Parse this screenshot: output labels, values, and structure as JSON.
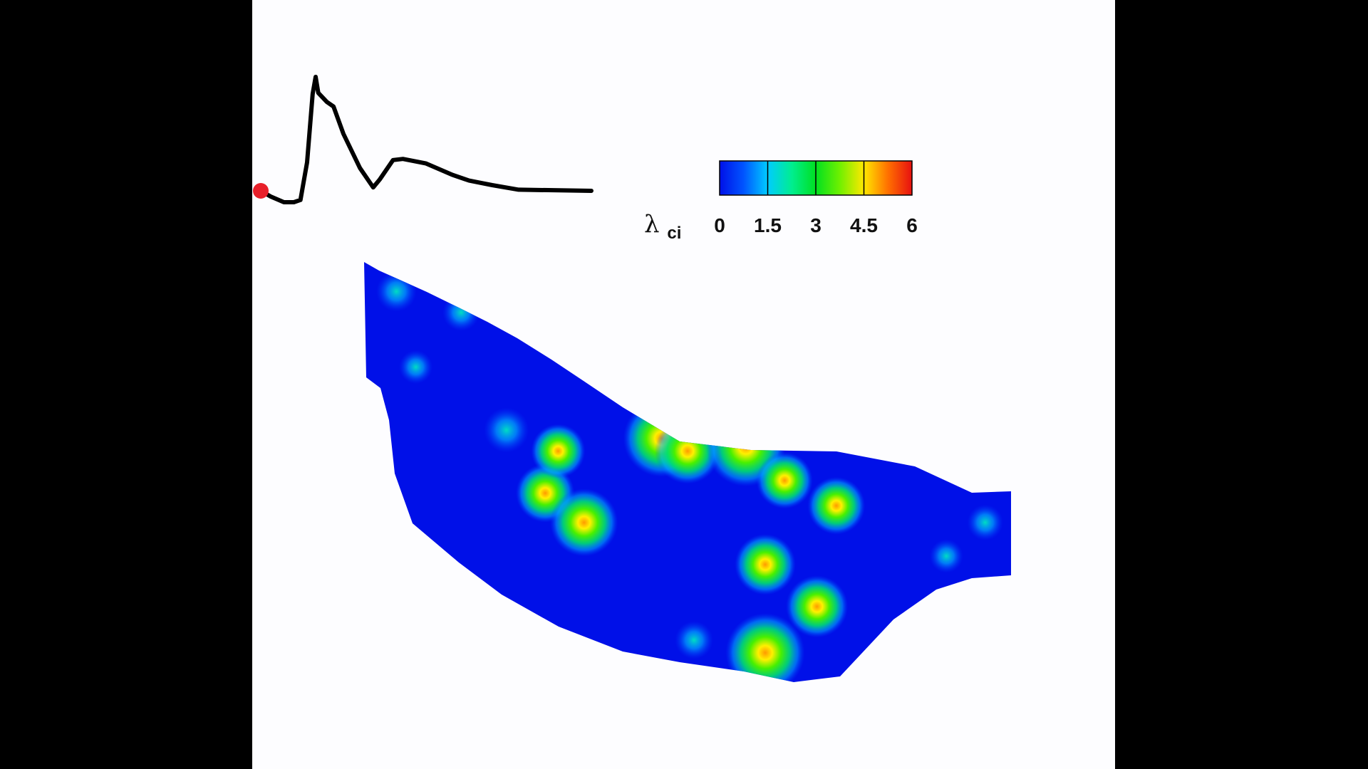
{
  "colors": {
    "background": "#000000",
    "panel": "#fdfdff",
    "waveform": "#000000",
    "marker": "#e8202a",
    "field_low": "#0010e8"
  },
  "chart_data": [
    {
      "type": "line",
      "title": "",
      "xlabel": "",
      "ylabel": "",
      "axes_visible": false,
      "series": [
        {
          "x": [
            0,
            0.03,
            0.07,
            0.1,
            0.12,
            0.14,
            0.157,
            0.166,
            0.174,
            0.2,
            0.22,
            0.25,
            0.3,
            0.34,
            0.36,
            0.4,
            0.43,
            0.5,
            0.58,
            0.63,
            0.7,
            0.78,
            1.0
          ],
          "y": [
            0.0,
            -0.05,
            -0.1,
            -0.1,
            -0.08,
            0.25,
            0.85,
            1.0,
            0.86,
            0.78,
            0.74,
            0.5,
            0.2,
            0.03,
            0.1,
            0.27,
            0.28,
            0.24,
            0.14,
            0.09,
            0.05,
            0.01,
            0.0
          ]
        }
      ],
      "current_point": {
        "x": 0,
        "y": 0
      }
    },
    {
      "type": "heatmap",
      "title": "",
      "xlabel": "",
      "ylabel": "",
      "axes_visible": false,
      "colorbar": {
        "label": "λ",
        "label_subscript": "ci",
        "ticks": [
          "0",
          "1.5",
          "3",
          "4.5",
          "6"
        ],
        "range": [
          0,
          6
        ],
        "colormap": "jet"
      },
      "field_hotspots": [
        {
          "x": 0.28,
          "y": 0.55,
          "peak": 3.4
        },
        {
          "x": 0.34,
          "y": 0.62,
          "peak": 4.2
        },
        {
          "x": 0.3,
          "y": 0.45,
          "peak": 3.0
        },
        {
          "x": 0.22,
          "y": 0.4,
          "peak": 2.2
        },
        {
          "x": 0.46,
          "y": 0.42,
          "peak": 5.0
        },
        {
          "x": 0.5,
          "y": 0.45,
          "peak": 4.0
        },
        {
          "x": 0.59,
          "y": 0.44,
          "peak": 5.2
        },
        {
          "x": 0.65,
          "y": 0.52,
          "peak": 3.2
        },
        {
          "x": 0.73,
          "y": 0.58,
          "peak": 3.3
        },
        {
          "x": 0.62,
          "y": 0.72,
          "peak": 3.6
        },
        {
          "x": 0.7,
          "y": 0.82,
          "peak": 3.7
        },
        {
          "x": 0.62,
          "y": 0.93,
          "peak": 5.2
        },
        {
          "x": 0.51,
          "y": 0.9,
          "peak": 1.6
        },
        {
          "x": 0.15,
          "y": 0.12,
          "peak": 1.5
        },
        {
          "x": 0.08,
          "y": 0.25,
          "peak": 1.2
        },
        {
          "x": 0.05,
          "y": 0.07,
          "peak": 1.8
        },
        {
          "x": 0.9,
          "y": 0.7,
          "peak": 1.2
        },
        {
          "x": 0.96,
          "y": 0.62,
          "peak": 1.4
        }
      ]
    }
  ]
}
